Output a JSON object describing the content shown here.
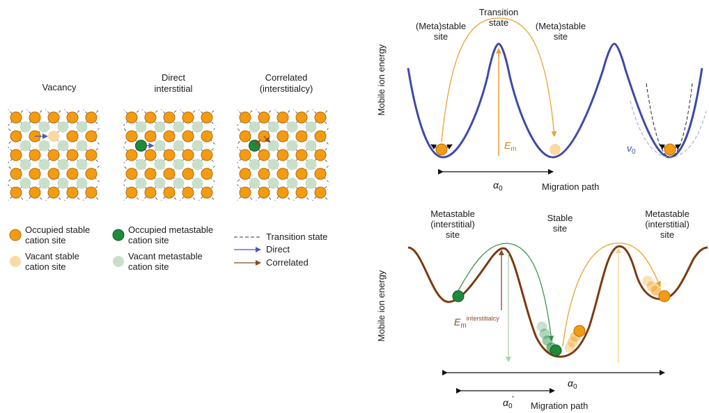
{
  "panel_a": {
    "titles": {
      "vacancy": "Vacancy",
      "direct": [
        "Direct",
        "interstitial"
      ],
      "correlated": [
        "Correlated",
        "(interstitialcy)"
      ]
    },
    "legend": {
      "occupied_stable": [
        "Occupied stable",
        "cation site"
      ],
      "vacant_stable": [
        "Vacant stable",
        "cation site"
      ],
      "occupied_metastable": [
        "Occupied metastable",
        "cation site"
      ],
      "vacant_metastable": [
        "Vacant metastable",
        "cation site"
      ],
      "transition_state": "Transition state",
      "direct": "Direct",
      "correlated": "Correlated"
    }
  },
  "panel_b": {
    "labels": {
      "left_site": [
        "(Meta)stable",
        "site"
      ],
      "transition": [
        "Transition",
        "state"
      ],
      "right_site": [
        "(Meta)stable",
        "site"
      ],
      "ylabel": "Mobile ion energy",
      "em_base": "E",
      "em_sub": "m",
      "nu_base": "ν",
      "nu_sub": "0",
      "alpha_base": "α",
      "alpha_sub": "0",
      "xlabel": "Migration path"
    }
  },
  "panel_c": {
    "labels": {
      "left_site": [
        "Metastable",
        "(interstitial)",
        "site"
      ],
      "center_site": [
        "Stable",
        "site"
      ],
      "right_site": [
        "Metastable",
        "(interstitial)",
        "site"
      ],
      "ylabel": "Mobile ion energy",
      "em_base": "E",
      "em_sub": "m",
      "em_sup": "interstitialcy",
      "alpha_base": "α",
      "alpha_sub": "0",
      "alpha_prime_sub": "0",
      "alpha_prime_mark": "'",
      "xlabel": "Migration path"
    }
  },
  "colors": {
    "occupied_stable": "#f39c12",
    "occupied_stable_stroke": "#b8690a",
    "vacant_stable": "#fbd9a3",
    "occupied_metastable": "#1e8a3c",
    "occupied_metastable_stroke": "#0f5a24",
    "vacant_metastable": "#c9dfc9",
    "blue_curve": "#3d4aa6",
    "brown_curve": "#7a3a10",
    "orange_arrow": "#e8a130",
    "green_arrow": "#3b9447",
    "brown_arrow": "#8a4a22",
    "direct_arrow": "#4a5ab8",
    "dash": "#555a70"
  }
}
